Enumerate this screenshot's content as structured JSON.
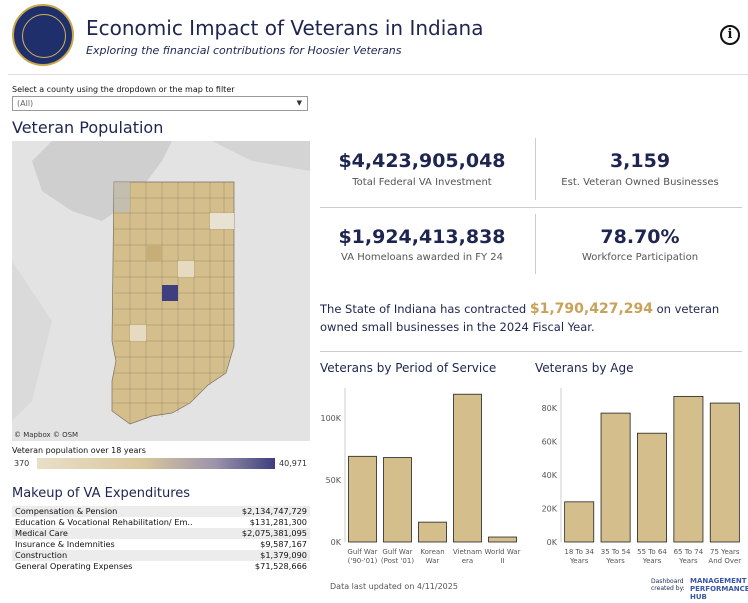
{
  "header": {
    "title": "Economic Impact of Veterans in Indiana",
    "subtitle": "Exploring the financial contributions for Hoosier Veterans",
    "info_glyph": "i",
    "seal_icon": "indiana-veterans-seal-icon"
  },
  "filter": {
    "label": "Select a county using the dropdown or the map to filter",
    "value": "(All)",
    "chevron": "▼"
  },
  "population": {
    "heading": "Veteran Population",
    "map_credit": "© Mapbox © OSM",
    "legend_title": "Veteran population over 18 years",
    "legend_min": "370",
    "legend_max": "40,971"
  },
  "kpis": [
    {
      "value": "$4,423,905,048",
      "label": "Total Federal VA Investment"
    },
    {
      "value": "3,159",
      "label": "Est. Veteran Owned Businesses"
    },
    {
      "value": "$1,924,413,838",
      "label": "VA Homeloans awarded in FY 24"
    },
    {
      "value": "78.70%",
      "label": "Workforce Participation"
    }
  ],
  "contract": {
    "pre": "The State of Indiana has contracted ",
    "amount": "$1,790,427,294",
    "post": " on veteran owned small businesses in the 2024 Fiscal Year."
  },
  "expenditures": {
    "heading": "Makeup of VA Expenditures",
    "rows": [
      {
        "label": "Compensation & Pension",
        "value": "$2,134,747,729"
      },
      {
        "label": "Education & Vocational Rehabilitation/ Em..",
        "value": "$131,281,300"
      },
      {
        "label": "Medical Care",
        "value": "$2,075,381,095"
      },
      {
        "label": "Insurance & Indemnities",
        "value": "$9,587,167"
      },
      {
        "label": "Construction",
        "value": "$1,379,090"
      },
      {
        "label": "General Operating Expenses",
        "value": "$71,528,666"
      }
    ]
  },
  "chart_data": [
    {
      "type": "bar",
      "title": "Veterans by Period of Service",
      "categories": [
        "Gulf War ('90-'01)",
        "Gulf War (Post '01)",
        "Korean War",
        "Vietnam era",
        "World War II"
      ],
      "category_lines": [
        [
          "Gulf War",
          "('90-'01)"
        ],
        [
          "Gulf War",
          "(Post '01)"
        ],
        [
          "Korean",
          "War"
        ],
        [
          "Vietnam",
          "era"
        ],
        [
          "World War",
          "II"
        ]
      ],
      "values": [
        69000,
        68000,
        16000,
        119000,
        4000
      ],
      "yticks": [
        0,
        50000,
        100000
      ],
      "ytick_labels": [
        "0K",
        "50K",
        "100K"
      ],
      "ylim": [
        0,
        124000
      ],
      "color": "#d4bf8c",
      "grid": false
    },
    {
      "type": "bar",
      "title": "Veterans by Age",
      "categories": [
        "18 To 34 Years",
        "35 To 54 Years",
        "55 To 64 Years",
        "65 To 74 Years",
        "75 Years And Over"
      ],
      "category_lines": [
        [
          "18 To 34",
          "Years"
        ],
        [
          "35 To 54",
          "Years"
        ],
        [
          "55 To 64",
          "Years"
        ],
        [
          "65 To 74",
          "Years"
        ],
        [
          "75 Years",
          "And Over"
        ]
      ],
      "values": [
        24000,
        77000,
        65000,
        87000,
        83000
      ],
      "yticks": [
        0,
        20000,
        40000,
        60000,
        80000
      ],
      "ytick_labels": [
        "0K",
        "20K",
        "40K",
        "60K",
        "80K"
      ],
      "ylim": [
        0,
        92000
      ],
      "color": "#d4bf8c",
      "grid": false
    }
  ],
  "footer": {
    "updated": "Data last updated on 4/11/2025",
    "credit": "Dashboard created by:",
    "brand": "MANAGEMENT PERFORMANCE HUB"
  },
  "colors": {
    "navy": "#1d2550",
    "gold": "#c9a25a",
    "bar": "#d4bf8c",
    "highlight": "#3f3e7e"
  }
}
